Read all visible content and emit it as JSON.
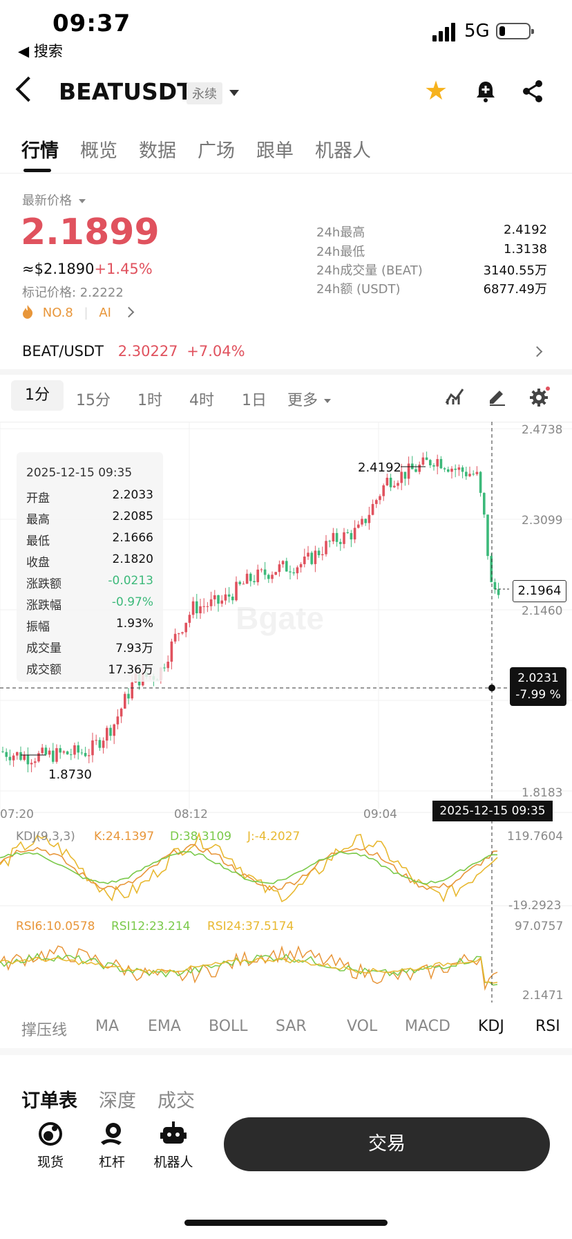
{
  "status_bar": {
    "time": "09:37",
    "back_label": "◀ 搜索",
    "network": "5G",
    "battery_level": 0.2
  },
  "header": {
    "pair": "BEATUSDT",
    "contract_type": "永续",
    "star_color": "#f6b21d"
  },
  "tabs": [
    {
      "label": "行情",
      "active": true
    },
    {
      "label": "概览",
      "active": false
    },
    {
      "label": "数据",
      "active": false
    },
    {
      "label": "广场",
      "active": false
    },
    {
      "label": "跟单",
      "active": false
    },
    {
      "label": "机器人",
      "active": false
    }
  ],
  "price": {
    "latest_label": "最新价格",
    "last": "2.1899",
    "usd": "≈$2.1890",
    "change_pct": "+1.45%",
    "mark_price": "标记价格: 2.2222",
    "rank": "NO.8",
    "ai": "AI",
    "up_color": "#e0525e",
    "down_color": "#3cb97a"
  },
  "stats": [
    {
      "label": "24h最高",
      "value": "2.4192"
    },
    {
      "label": "24h最低",
      "value": "1.3138"
    },
    {
      "label": "24h成交量 (BEAT)",
      "value": "3140.55万"
    },
    {
      "label": "24h额 (USDT)",
      "value": "6877.49万"
    }
  ],
  "index_row": {
    "pair": "BEAT/USDT",
    "price": "2.30227",
    "change": "+7.04%"
  },
  "intervals": [
    {
      "label": "1分",
      "active": true
    },
    {
      "label": "15分",
      "active": false
    },
    {
      "label": "1时",
      "active": false
    },
    {
      "label": "4时",
      "active": false
    },
    {
      "label": "1日",
      "active": false
    },
    {
      "label": "更多",
      "active": false
    }
  ],
  "chart": {
    "y_ticks": [
      "2.4738",
      "2.3099",
      "2.1460",
      "1.8183"
    ],
    "x_ticks": [
      "07:20",
      "08:12",
      "09:04"
    ],
    "high_label": "2.4192",
    "low_label": "1.8730",
    "current_price_tag": "2.1964",
    "cross_price": "2.0231",
    "cross_pct": "-7.99 %",
    "cross_time": "2025-12-15 09:35",
    "watermark": "Bgate",
    "info": {
      "time": "2025-12-15 09:35",
      "rows": [
        {
          "label": "开盘",
          "value": "2.2033",
          "color": "default"
        },
        {
          "label": "最高",
          "value": "2.2085",
          "color": "default"
        },
        {
          "label": "最低",
          "value": "2.1666",
          "color": "default"
        },
        {
          "label": "收盘",
          "value": "2.1820",
          "color": "default"
        },
        {
          "label": "涨跌额",
          "value": "-0.0213",
          "color": "green"
        },
        {
          "label": "涨跌幅",
          "value": "-0.97%",
          "color": "green"
        },
        {
          "label": "振幅",
          "value": "1.93%",
          "color": "default"
        },
        {
          "label": "成交量",
          "value": "7.93万",
          "color": "default"
        },
        {
          "label": "成交额",
          "value": "17.36万",
          "color": "default"
        }
      ]
    }
  },
  "kdj": {
    "title": "KDJ(9,3,3)",
    "k": "K:24.1397",
    "d": "D:38.3109",
    "j": "J:-4.2027",
    "max": "119.7604",
    "min": "-19.2923"
  },
  "rsi": {
    "r6": "RSI6:10.0578",
    "r12": "RSI12:23.214",
    "r24": "RSI24:37.5174",
    "max": "97.0757",
    "min": "2.1471"
  },
  "indicator_tabs": [
    {
      "label": "撑压线",
      "active": false
    },
    {
      "label": "MA",
      "active": false
    },
    {
      "label": "EMA",
      "active": false
    },
    {
      "label": "BOLL",
      "active": false
    },
    {
      "label": "SAR",
      "active": false
    },
    {
      "label": "VOL",
      "active": false
    },
    {
      "label": "MACD",
      "active": false
    },
    {
      "label": "KDJ",
      "active": true
    },
    {
      "label": "RSI",
      "active": true
    }
  ],
  "orderbook_tabs": [
    {
      "label": "订单表",
      "active": true
    },
    {
      "label": "深度",
      "active": false
    },
    {
      "label": "成交",
      "active": false
    }
  ],
  "bottom_bar": {
    "spot": "现货",
    "leverage": "杠杆",
    "robot": "机器人",
    "trade": "交易"
  }
}
